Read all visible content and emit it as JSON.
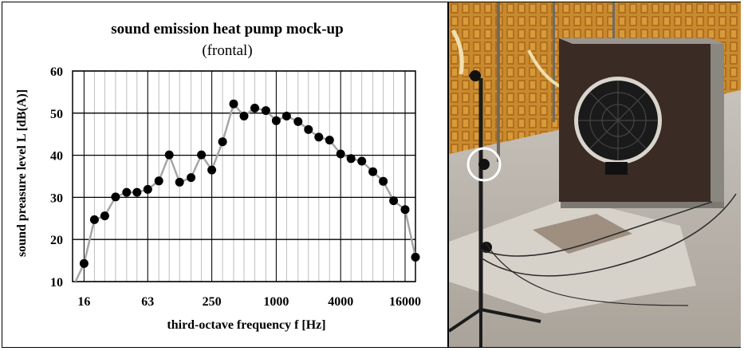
{
  "chart_data": {
    "type": "line",
    "title": "sound emission heat pump mock-up",
    "subtitle": "(frontal)",
    "xlabel": "third-octave frequency f [Hz]",
    "ylabel": "sound preasure level L [dB(A)]",
    "x_scale": "log",
    "xlim": [
      12.5,
      20000
    ],
    "ylim": [
      10,
      60
    ],
    "y_ticks": [
      10,
      20,
      30,
      40,
      50,
      60
    ],
    "x_ticks": [
      {
        "value": 16,
        "label": "16"
      },
      {
        "value": 63,
        "label": "63"
      },
      {
        "value": 250,
        "label": "250"
      },
      {
        "value": 1000,
        "label": "1000"
      },
      {
        "value": 4000,
        "label": "4000"
      },
      {
        "value": 16000,
        "label": "16000"
      }
    ],
    "grid": true,
    "colors": {
      "line": "#a6a6a6",
      "marker": "#000000",
      "grid": "#000000"
    },
    "series": [
      {
        "x": [
          12.5,
          16,
          20,
          25,
          31.5,
          40,
          50,
          63,
          80,
          100,
          125,
          160,
          200,
          250,
          315,
          400,
          500,
          630,
          800,
          1000,
          1250,
          1600,
          2000,
          2500,
          3150,
          4000,
          5000,
          6300,
          8000,
          10000,
          12500,
          16000,
          20000
        ],
        "y": [
          8.5,
          14.3,
          24.7,
          25.6,
          30.1,
          31.2,
          31.2,
          31.9,
          33.9,
          40.1,
          33.6,
          34.7,
          40.1,
          36.5,
          43.2,
          52.2,
          49.3,
          51.2,
          50.6,
          48.2,
          49.3,
          48.0,
          46.1,
          44.3,
          43.6,
          40.3,
          39.2,
          38.6,
          36.1,
          33.8,
          29.2,
          27.1,
          15.8
        ]
      }
    ]
  },
  "photo": {
    "description_icon": "anechoic-chamber-photo-icon"
  }
}
